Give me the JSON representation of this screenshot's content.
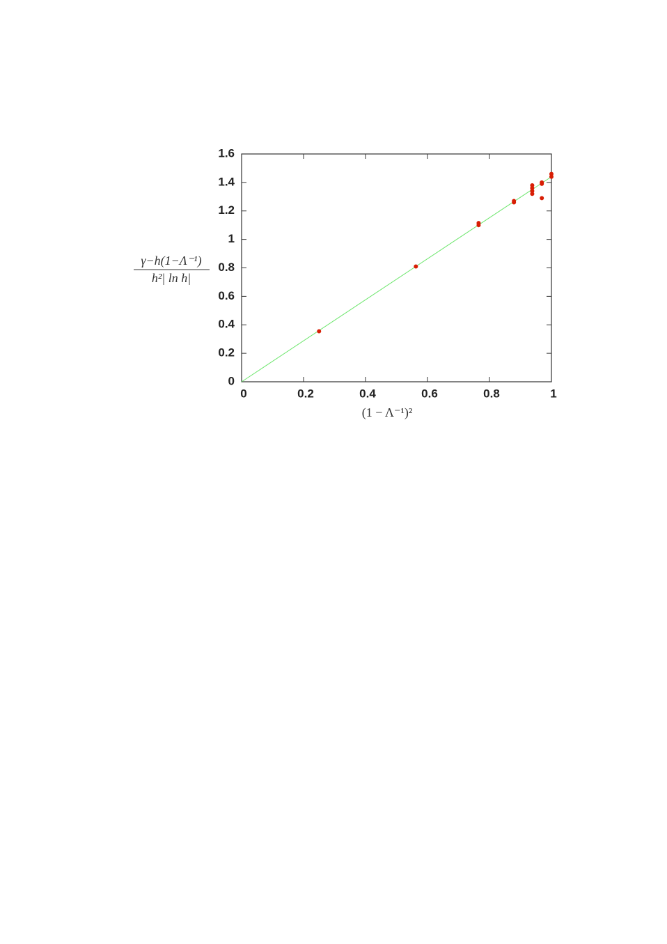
{
  "chart_data": {
    "type": "scatter",
    "xlabel": "(1 − Λ⁻¹)²",
    "ylabel": {
      "numerator": "γ−h(1−Λ⁻¹)",
      "denominator": "h²| ln h|"
    },
    "xlim": [
      0,
      1
    ],
    "ylim": [
      0,
      1.6
    ],
    "xticks": [
      0,
      0.2,
      0.4,
      0.6,
      0.8,
      1
    ],
    "yticks": [
      0,
      0.2,
      0.4,
      0.6,
      0.8,
      1,
      1.2,
      1.4,
      1.6
    ],
    "series": [
      {
        "type": "line",
        "color": "#6ee66e",
        "x": [
          0,
          1
        ],
        "values": [
          0,
          1.44
        ]
      },
      {
        "type": "scatter",
        "color": "#d81e05",
        "x": [
          0.25,
          0.5625,
          0.765,
          0.765,
          0.879,
          0.879,
          0.938,
          0.938,
          0.938,
          0.938,
          0.969,
          0.969,
          0.969,
          1,
          1
        ],
        "values": [
          0.355,
          0.81,
          1.1,
          1.115,
          1.26,
          1.27,
          1.32,
          1.34,
          1.36,
          1.38,
          1.39,
          1.4,
          1.29,
          1.44,
          1.46
        ]
      }
    ]
  }
}
